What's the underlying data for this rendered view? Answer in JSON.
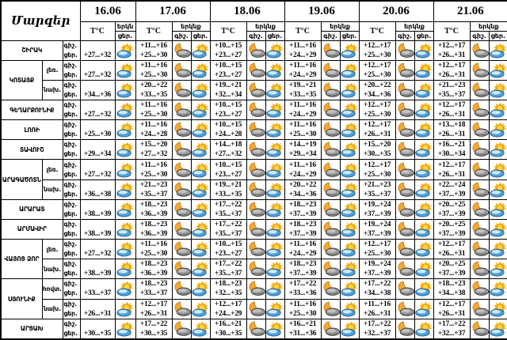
{
  "labels": {
    "regions": "Մարզեր",
    "temp": "T°C",
    "sky": "երկնք",
    "sky_short": "երկն",
    "night": "գիշ.",
    "day": "ցեր."
  },
  "dates": [
    "16.06",
    "17.06",
    "18.06",
    "19.06",
    "20.06",
    "21.06"
  ],
  "icons": {
    "day": "sun-cloud-icon",
    "night": "moon-cloud-icon"
  },
  "colors": {
    "border": "#000000",
    "background": "#ffffff",
    "sun": "#ffd94d",
    "sun_rays": "#f6a80c",
    "day_cloud": "#4f9fd9",
    "day_cloud_highlight": "#cfe9fb",
    "moon": "#f4a733",
    "night_cloud": "#9a9a9a"
  },
  "rows": [
    {
      "region": "ՇԻՐԱԿ",
      "cells": [
        {
          "d": "+27...+32"
        },
        {
          "n": "+11...+16",
          "d": "+25...+30"
        },
        {
          "n": "+10...+15",
          "d": "+23...+27"
        },
        {
          "n": "+11...+16",
          "d": "+24...+29"
        },
        {
          "n": "+12...+17",
          "d": "+25...+30"
        },
        {
          "n": "+12...+17",
          "d": "+26...+31"
        }
      ]
    },
    {
      "region": "ԿՈՏԱՅՔ",
      "zone": "լեռ.",
      "cells": [
        {
          "d": "+27...+32"
        },
        {
          "n": "+11...+16",
          "d": "+25...+30"
        },
        {
          "n": "+10...+15",
          "d": "+23...+27"
        },
        {
          "n": "+11...+16",
          "d": "+24...+29"
        },
        {
          "n": "+12...+17",
          "d": "+25...+30"
        },
        {
          "n": "+12...+17",
          "d": "+26...+31"
        }
      ]
    },
    {
      "zone": "նախ.",
      "cells": [
        {
          "d": "+34...+36"
        },
        {
          "n": "+20...+22",
          "d": "+33...+35"
        },
        {
          "n": "+19...+21",
          "d": "+32...+34"
        },
        {
          "n": "+19...+21",
          "d": "+33...+35"
        },
        {
          "n": "+20...+22",
          "d": "+34...+36"
        },
        {
          "n": "+21...+23",
          "d": "+35...+37"
        }
      ]
    },
    {
      "region": "ԳԵՂԱՐՔՈՒՆԻՔ",
      "cells": [
        {
          "d": "+27...+32"
        },
        {
          "n": "+11...+16",
          "d": "+25...+30"
        },
        {
          "n": "+10...+15",
          "d": "+23...+27"
        },
        {
          "n": "+11...+16",
          "d": "+24...+29"
        },
        {
          "n": "+12...+17",
          "d": "+25...+30"
        },
        {
          "n": "+12...+17",
          "d": "+26...+31"
        }
      ]
    },
    {
      "region": "ԼՈՌԻ",
      "cells": [
        {
          "d": "+25...+30"
        },
        {
          "n": "+11...+16",
          "d": "+24...+28"
        },
        {
          "n": "+10...+15",
          "d": "+24...+28"
        },
        {
          "n": "+11...+16",
          "d": "+25...+30"
        },
        {
          "n": "+12...+17",
          "d": "+26...+31"
        },
        {
          "n": "+13...+18",
          "d": "+26...+31"
        }
      ]
    },
    {
      "region": "ՏԱՎՈՒՇ",
      "cells": [
        {
          "d": "+29...+34"
        },
        {
          "n": "+15...+20",
          "d": "+27...+32"
        },
        {
          "n": "+14...+18",
          "d": "+27...+32"
        },
        {
          "n": "+14...+19",
          "d": "+29...+34"
        },
        {
          "n": "+15...+20",
          "d": "+30...+35"
        },
        {
          "n": "+16...+21",
          "d": "+30...+34"
        }
      ]
    },
    {
      "region": "ԱՐԱԳԱԾՈՏՆ",
      "zone": "լեռ.",
      "cells": [
        {
          "d": "+27...+32"
        },
        {
          "n": "+11...+16",
          "d": "+25...+30"
        },
        {
          "n": "+10...+15",
          "d": "+23...+27"
        },
        {
          "n": "+11...+16",
          "d": "+24...+29"
        },
        {
          "n": "+12...+17",
          "d": "+25...+30"
        },
        {
          "n": "+12...+17",
          "d": "+26...+31"
        }
      ]
    },
    {
      "zone": "նախ.",
      "cells": [
        {
          "d": "+36...+38"
        },
        {
          "n": "+21...+23",
          "d": "+35...+37"
        },
        {
          "n": "+19...+21",
          "d": "+33...+35"
        },
        {
          "n": "+20...+22",
          "d": "+34...+36"
        },
        {
          "n": "+21...+23",
          "d": "+35...+37"
        },
        {
          "n": "+22...+24",
          "d": "+37...+39"
        }
      ]
    },
    {
      "region": "ԱՐԱՐԱՏ",
      "cells": [
        {
          "d": "+38...+39"
        },
        {
          "n": "+18...+23",
          "d": "+36...+39"
        },
        {
          "n": "+17...+22",
          "d": "+35...+37"
        },
        {
          "n": "+18...+23",
          "d": "+37...+39"
        },
        {
          "n": "+19...+24",
          "d": "+37...+39"
        },
        {
          "n": "+20...+25",
          "d": "+37...+39"
        }
      ]
    },
    {
      "region": "ԱՐՄԱՎԻՐ",
      "cells": [
        {
          "d": "+38...+39"
        },
        {
          "n": "+18...+23",
          "d": "+36...+39"
        },
        {
          "n": "+17...+22",
          "d": "+35...+37"
        },
        {
          "n": "+18...+23",
          "d": "+37...+39"
        },
        {
          "n": "+19...+24",
          "d": "+37...+39"
        },
        {
          "n": "+20...+25",
          "d": "+37...+39"
        }
      ]
    },
    {
      "region": "ՎԱՅՈՑ ՁՈՐ",
      "zone": "լեռ.",
      "cells": [
        {
          "d": "+27...+32"
        },
        {
          "n": "+11...+16",
          "d": "+25...+30"
        },
        {
          "n": "+10...+15",
          "d": "+23...+27"
        },
        {
          "n": "+11...+16",
          "d": "+24...+29"
        },
        {
          "n": "+12...+17",
          "d": "+25...+30"
        },
        {
          "n": "+12...+17",
          "d": "+26...+31"
        }
      ]
    },
    {
      "zone": "նախ.",
      "cells": [
        {
          "d": "+38...+39"
        },
        {
          "n": "+18...+23",
          "d": "+36...+39"
        },
        {
          "n": "+17...+22",
          "d": "+35...+37"
        },
        {
          "n": "+18...+23",
          "d": "+37...+39"
        },
        {
          "n": "+19...+24",
          "d": "+37...+39"
        },
        {
          "n": "+20...+25",
          "d": "+37...+39"
        }
      ]
    },
    {
      "region": "ՍՅՈՒՆԻՔ",
      "zone": "հովտ.",
      "cells": [
        {
          "d": "+33...+37"
        },
        {
          "n": "+18...+23",
          "d": "+33...+37"
        },
        {
          "n": "+18...+23",
          "d": "+32...+35"
        },
        {
          "n": "+17...+22",
          "d": "+33...+36"
        },
        {
          "n": "+17...+22",
          "d": "+34...+38"
        },
        {
          "n": "+18...+23",
          "d": "+34...+38"
        }
      ]
    },
    {
      "zone": "նախ.",
      "cells": [
        {
          "d": "+26...+31"
        },
        {
          "n": "+12...+17",
          "d": "+26...+31"
        },
        {
          "n": "+12...+17",
          "d": "+24...+29"
        },
        {
          "n": "+11...+16",
          "d": "+25...+30"
        },
        {
          "n": "+11...+16",
          "d": "+26...+31"
        },
        {
          "n": "+12...+17",
          "d": "+26...+31"
        }
      ]
    },
    {
      "region": "ԱՐՑԱԽ",
      "cells": [
        {
          "d": "+30...+35"
        },
        {
          "n": "+17...+22",
          "d": "+30...+35"
        },
        {
          "n": "+16...+21",
          "d": "+30...+35"
        },
        {
          "n": "+16...+21",
          "d": "+31...+36"
        },
        {
          "n": "+17...+22",
          "d": "+32...+37"
        },
        {
          "n": "+17...+22",
          "d": "+32...+37"
        }
      ]
    }
  ]
}
